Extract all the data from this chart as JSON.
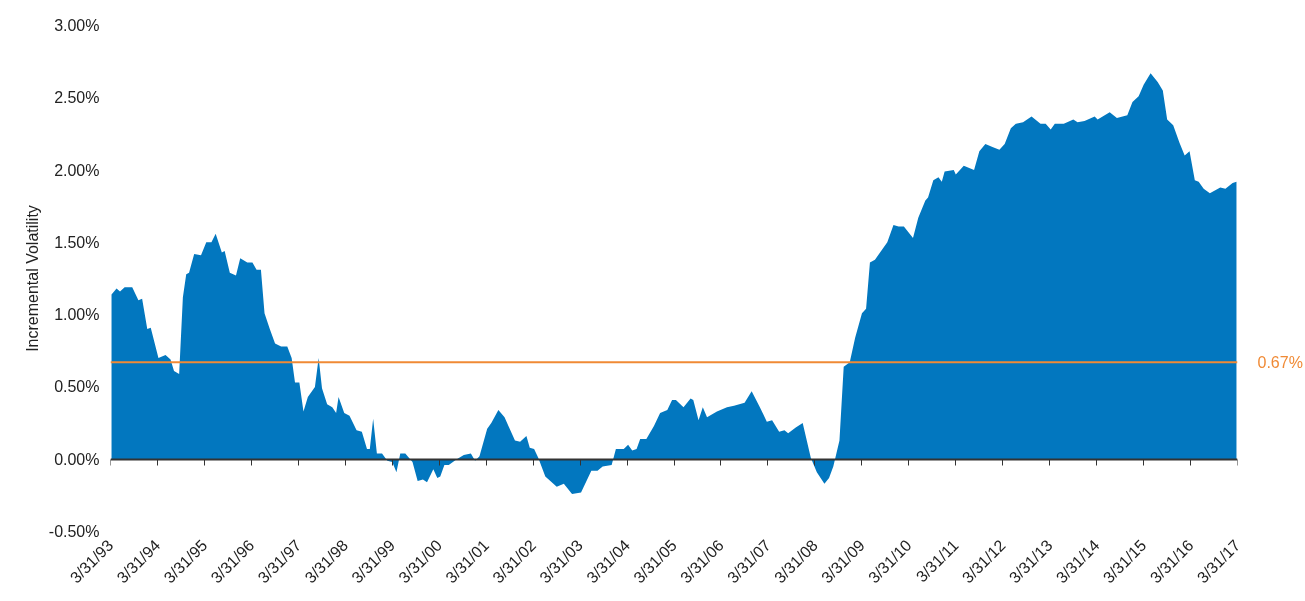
{
  "chart_data": {
    "type": "area",
    "ylabel": "Incremental Volatility",
    "x": [
      "1993-04-08",
      "1993-05-17",
      "1993-06-13",
      "1993-07-19",
      "1993-09-16",
      "1993-11-03",
      "1993-12-02",
      "1994-01-11",
      "1994-02-07",
      "1994-04-08",
      "1994-06-02",
      "1994-07-11",
      "1994-08-07",
      "1994-09-16",
      "1994-10-15",
      "1994-11-10",
      "1994-12-02",
      "1995-01-11",
      "1995-03-05",
      "1995-04-15",
      "1995-05-25",
      "1995-06-27",
      "1995-08-14",
      "1995-09-05",
      "1995-10-15",
      "1995-12-02",
      "1996-01-04",
      "1996-02-28",
      "1996-04-08",
      "1996-05-10",
      "1996-06-13",
      "1996-07-11",
      "1996-08-21",
      "1996-10-01",
      "1996-11-17",
      "1997-01-04",
      "1997-02-07",
      "1997-03-05",
      "1997-04-08",
      "1997-05-10",
      "1997-06-13",
      "1997-08-07",
      "1997-09-05",
      "1997-10-01",
      "1997-11-10",
      "1997-12-20",
      "1998-01-19",
      "1998-02-07",
      "1998-03-23",
      "1998-05-03",
      "1998-06-27",
      "1998-08-07",
      "1998-09-16",
      "1998-10-08",
      "1998-11-03",
      "1998-12-02",
      "1999-01-11",
      "1999-02-21",
      "1999-04-01",
      "1999-05-03",
      "1999-06-02",
      "1999-07-11",
      "1999-09-05",
      "1999-10-15",
      "1999-11-25",
      "1999-12-27",
      "2000-02-14",
      "2000-03-16",
      "2000-04-08",
      "2000-05-10",
      "2000-06-13",
      "2000-08-14",
      "2000-10-08",
      "2000-12-02",
      "2001-01-04",
      "2001-02-07",
      "2001-04-08",
      "2001-05-10",
      "2001-07-04",
      "2001-08-21",
      "2001-11-10",
      "2001-12-20",
      "2002-02-07",
      "2002-03-05",
      "2002-04-08",
      "2002-05-10",
      "2002-07-04",
      "2002-10-01",
      "2002-11-25",
      "2003-01-28",
      "2003-04-08",
      "2003-06-27",
      "2003-08-14",
      "2003-09-23",
      "2003-12-02",
      "2004-01-04",
      "2004-03-05",
      "2004-04-08",
      "2004-05-10",
      "2004-06-13",
      "2004-07-11",
      "2004-08-28",
      "2004-10-26",
      "2004-12-13",
      "2005-02-07",
      "2005-03-16",
      "2005-04-15",
      "2005-06-13",
      "2005-08-07",
      "2005-08-28",
      "2005-10-08",
      "2005-11-10",
      "2005-12-13",
      "2006-02-28",
      "2006-05-17",
      "2006-07-11",
      "2006-10-01",
      "2006-11-25",
      "2007-01-28",
      "2007-03-23",
      "2007-05-03",
      "2007-06-27",
      "2007-08-07",
      "2007-09-05",
      "2007-11-03",
      "2007-12-27",
      "2008-02-28",
      "2008-04-15",
      "2008-06-13",
      "2008-07-19",
      "2008-08-21",
      "2008-10-08",
      "2008-11-10",
      "2008-12-27",
      "2009-02-07",
      "2009-04-01",
      "2009-05-03",
      "2009-06-02",
      "2009-07-11",
      "2009-10-15",
      "2009-12-02",
      "2010-01-11",
      "2010-02-21",
      "2010-05-03",
      "2010-06-13",
      "2010-08-07",
      "2010-08-28",
      "2010-10-08",
      "2010-11-17",
      "2010-12-13",
      "2011-01-04",
      "2011-03-16",
      "2011-04-01",
      "2011-06-02",
      "2011-08-21",
      "2011-10-01",
      "2011-11-17",
      "2012-01-11",
      "2012-03-05",
      "2012-04-15",
      "2012-06-02",
      "2012-07-11",
      "2012-09-05",
      "2012-11-10",
      "2013-01-19",
      "2013-02-28",
      "2013-04-08",
      "2013-05-10",
      "2013-07-19",
      "2013-10-01",
      "2013-11-03",
      "2013-12-27",
      "2014-03-16",
      "2014-04-08",
      "2014-05-17",
      "2014-07-11",
      "2014-09-05",
      "2014-11-25",
      "2015-01-04",
      "2015-02-21",
      "2015-04-01",
      "2015-05-25",
      "2015-07-19",
      "2015-08-28",
      "2015-10-01",
      "2015-11-17",
      "2016-01-04",
      "2016-02-14",
      "2016-03-23",
      "2016-05-03",
      "2016-06-02",
      "2016-07-11",
      "2016-08-28",
      "2016-11-17",
      "2016-12-27",
      "2017-02-21",
      "2017-03-23"
    ],
    "series": [
      {
        "color": "#0277bf",
        "values": [
          1.14,
          1.18,
          1.16,
          1.19,
          1.19,
          1.1,
          1.11,
          0.9,
          0.91,
          0.7,
          0.72,
          0.69,
          0.61,
          0.59,
          1.12,
          1.28,
          1.29,
          1.42,
          1.41,
          1.5,
          1.5,
          1.56,
          1.43,
          1.44,
          1.29,
          1.27,
          1.39,
          1.36,
          1.36,
          1.31,
          1.31,
          1.01,
          0.9,
          0.8,
          0.78,
          0.78,
          0.7,
          0.53,
          0.53,
          0.33,
          0.43,
          0.5,
          0.7,
          0.49,
          0.38,
          0.36,
          0.32,
          0.43,
          0.32,
          0.3,
          0.2,
          0.19,
          0.07,
          0.07,
          0.28,
          0.04,
          0.04,
          -0.01,
          -0.02,
          -0.09,
          0.04,
          0.04,
          -0.02,
          -0.15,
          -0.14,
          -0.16,
          -0.07,
          -0.13,
          -0.12,
          -0.04,
          -0.04,
          0,
          0.03,
          0.04,
          -0.01,
          0.02,
          0.21,
          0.25,
          0.34,
          0.29,
          0.13,
          0.12,
          0.16,
          0.08,
          0.07,
          0.01,
          -0.12,
          -0.19,
          -0.17,
          -0.24,
          -0.23,
          -0.08,
          -0.08,
          -0.05,
          -0.04,
          0.07,
          0.07,
          0.1,
          0.06,
          0.07,
          0.14,
          0.14,
          0.23,
          0.32,
          0.34,
          0.41,
          0.41,
          0.36,
          0.42,
          0.41,
          0.27,
          0.36,
          0.29,
          0.33,
          0.36,
          0.37,
          0.39,
          0.47,
          0.36,
          0.26,
          0.27,
          0.19,
          0.2,
          0.18,
          0.22,
          0.25,
          0.01,
          -0.09,
          -0.17,
          -0.13,
          -0.05,
          0.13,
          0.64,
          0.67,
          0.84,
          1.01,
          1.04,
          1.36,
          1.38,
          1.5,
          1.62,
          1.61,
          1.61,
          1.53,
          1.67,
          1.79,
          1.81,
          1.93,
          1.95,
          1.92,
          1.99,
          2.0,
          1.97,
          2.03,
          2.0,
          2.13,
          2.18,
          2.16,
          2.14,
          2.18,
          2.29,
          2.32,
          2.33,
          2.37,
          2.32,
          2.32,
          2.28,
          2.32,
          2.32,
          2.35,
          2.33,
          2.34,
          2.37,
          2.35,
          2.37,
          2.4,
          2.36,
          2.38,
          2.47,
          2.51,
          2.59,
          2.67,
          2.61,
          2.55,
          2.35,
          2.31,
          2.19,
          2.1,
          2.13,
          1.93,
          1.92,
          1.87,
          1.84,
          1.88,
          1.87,
          1.91,
          1.92
        ]
      }
    ],
    "xlim": [
      "1993-03-31",
      "2017-03-31"
    ],
    "xticks": [
      {
        "value": "1993-03-31",
        "label": "3/31/93"
      },
      {
        "value": "1994-03-31",
        "label": "3/31/94"
      },
      {
        "value": "1995-03-31",
        "label": "3/31/95"
      },
      {
        "value": "1996-03-31",
        "label": "3/31/96"
      },
      {
        "value": "1997-03-31",
        "label": "3/31/97"
      },
      {
        "value": "1998-03-31",
        "label": "3/31/98"
      },
      {
        "value": "1999-03-31",
        "label": "3/31/99"
      },
      {
        "value": "2000-03-31",
        "label": "3/31/00"
      },
      {
        "value": "2001-03-31",
        "label": "3/31/01"
      },
      {
        "value": "2002-03-31",
        "label": "3/31/02"
      },
      {
        "value": "2003-03-31",
        "label": "3/31/03"
      },
      {
        "value": "2004-03-31",
        "label": "3/31/04"
      },
      {
        "value": "2005-03-31",
        "label": "3/31/05"
      },
      {
        "value": "2006-03-31",
        "label": "3/31/06"
      },
      {
        "value": "2007-03-31",
        "label": "3/31/07"
      },
      {
        "value": "2008-03-31",
        "label": "3/31/08"
      },
      {
        "value": "2009-03-31",
        "label": "3/31/09"
      },
      {
        "value": "2010-03-31",
        "label": "3/31/10"
      },
      {
        "value": "2011-03-31",
        "label": "3/31/11"
      },
      {
        "value": "2012-03-31",
        "label": "3/31/12"
      },
      {
        "value": "2013-03-31",
        "label": "3/31/13"
      },
      {
        "value": "2014-03-31",
        "label": "3/31/14"
      },
      {
        "value": "2015-03-31",
        "label": "3/31/15"
      },
      {
        "value": "2016-03-31",
        "label": "3/31/16"
      },
      {
        "value": "2017-03-31",
        "label": "3/31/17"
      }
    ],
    "ylim": [
      -0.5,
      3.0
    ],
    "yticks": [
      {
        "value": -0.5,
        "label": "-0.50%"
      },
      {
        "value": 0,
        "label": "0.00%"
      },
      {
        "value": 0.5,
        "label": "0.50%"
      },
      {
        "value": 1.0,
        "label": "1.00%"
      },
      {
        "value": 1.5,
        "label": "1.50%"
      },
      {
        "value": 2.0,
        "label": "2.00%"
      },
      {
        "value": 2.5,
        "label": "2.50%"
      },
      {
        "value": 3.0,
        "label": "3.00%"
      }
    ],
    "ref_lines": [
      {
        "axis": "y",
        "value": 0.67,
        "label": "0.67%",
        "color": "#f08a35"
      }
    ]
  }
}
